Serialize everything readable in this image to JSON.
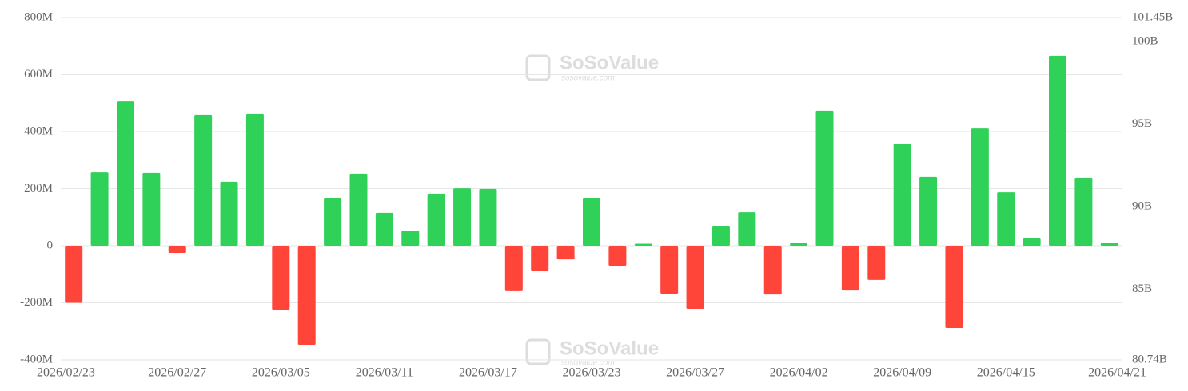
{
  "chart_data": {
    "type": "bar",
    "watermark": {
      "brand": "SoSoValue",
      "site": "sosovalue.com"
    },
    "categories": [
      "2026/02/23",
      null,
      null,
      null,
      "2026/02/27",
      null,
      null,
      null,
      "2026/03/05",
      null,
      null,
      null,
      "2026/03/11",
      null,
      null,
      null,
      "2026/03/17",
      null,
      null,
      null,
      "2026/03/23",
      null,
      null,
      null,
      "2026/03/27",
      null,
      null,
      null,
      "2026/04/02",
      null,
      null,
      null,
      "2026/04/09",
      null,
      null,
      null,
      "2026/04/15",
      null,
      null,
      null,
      "2026/04/21"
    ],
    "values": [
      -200,
      257,
      506,
      255,
      -25,
      459,
      224,
      462,
      -224,
      -347,
      168,
      252,
      115,
      53,
      182,
      201,
      199,
      -159,
      -87,
      -48,
      168,
      -70,
      7,
      -168,
      -221,
      70,
      117,
      -171,
      9,
      473,
      -157,
      -120,
      358,
      241,
      -288,
      411,
      187,
      28,
      666,
      238,
      10
    ],
    "positive_color": "#30d158",
    "negative_color": "#ff453a",
    "ylim": [
      -400,
      800
    ],
    "yticks": [
      {
        "value": -400,
        "label": "-400M"
      },
      {
        "value": -200,
        "label": "-200M"
      },
      0,
      {
        "value": 200,
        "label": "200M"
      },
      {
        "value": 400,
        "label": "400M"
      },
      {
        "value": 600,
        "label": "600M"
      },
      {
        "value": 800,
        "label": "800M"
      }
    ],
    "y2lim": [
      80.74,
      101.45
    ],
    "y2ticks": [
      {
        "value": 80.74,
        "label": "80.74B"
      },
      {
        "value": 85,
        "label": "85B"
      },
      {
        "value": 90,
        "label": "90B"
      },
      {
        "value": 95,
        "label": "95B"
      },
      {
        "value": 100,
        "label": "100B"
      },
      {
        "value": 101.45,
        "label": "101.45B"
      }
    ],
    "grid": true
  }
}
